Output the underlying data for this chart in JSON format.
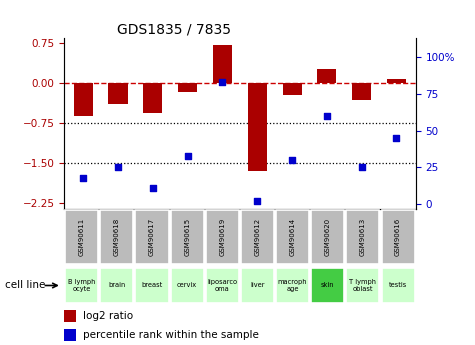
{
  "title": "GDS1835 / 7835",
  "samples": [
    "GSM90611",
    "GSM90618",
    "GSM90617",
    "GSM90615",
    "GSM90619",
    "GSM90612",
    "GSM90614",
    "GSM90620",
    "GSM90613",
    "GSM90616"
  ],
  "cell_lines": [
    "B lymph\nocyte",
    "brain",
    "breast",
    "cervix",
    "liposarco\noma",
    "liver",
    "macroph\nage",
    "skin",
    "T lymph\noblast",
    "testis"
  ],
  "cell_line_colors": [
    "#ccffcc",
    "#ccffcc",
    "#ccffcc",
    "#ccffcc",
    "#ccffcc",
    "#ccffcc",
    "#ccffcc",
    "#44cc44",
    "#ccffcc",
    "#ccffcc"
  ],
  "log2_ratio": [
    -0.62,
    -0.38,
    -0.55,
    -0.17,
    0.72,
    -1.65,
    -0.22,
    0.27,
    -0.32,
    0.08
  ],
  "percentile_rank": [
    18,
    25,
    11,
    33,
    83,
    2,
    30,
    60,
    25,
    45
  ],
  "ylim_left": [
    -2.35,
    0.85
  ],
  "ylim_right": [
    -3.33,
    113.33
  ],
  "yticks_left": [
    0.75,
    0,
    -0.75,
    -1.5,
    -2.25
  ],
  "yticks_right": [
    100,
    75,
    50,
    25,
    0
  ],
  "bar_color": "#aa0000",
  "dot_color": "#0000cc",
  "hline_zero_color": "#cc0000",
  "bg_color": "#ffffff",
  "sample_box_color": "#bbbbbb",
  "legend_bar_label": "log2 ratio",
  "legend_dot_label": "percentile rank within the sample",
  "cell_line_label": "cell line"
}
